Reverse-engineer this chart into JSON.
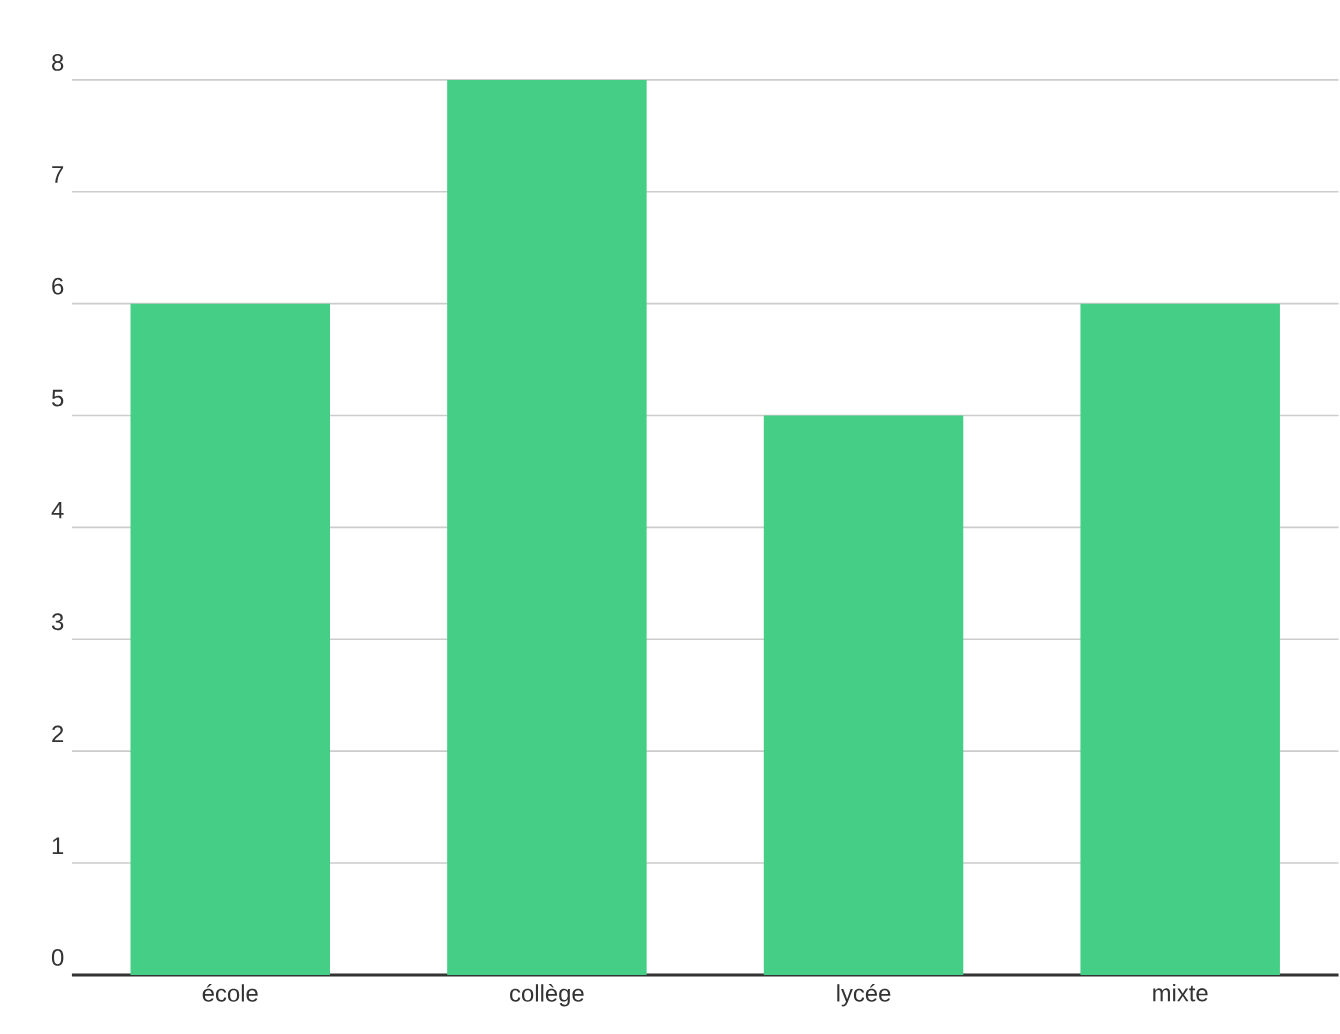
{
  "chart_data": {
    "type": "bar",
    "categories": [
      "école",
      "collège",
      "lycée",
      "mixte"
    ],
    "values": [
      6,
      8,
      5,
      6
    ],
    "color": "#45cf86",
    "ylim": [
      0,
      8
    ],
    "yticks": [
      0,
      1,
      2,
      3,
      4,
      5,
      6,
      7,
      8
    ],
    "grid": "y"
  }
}
